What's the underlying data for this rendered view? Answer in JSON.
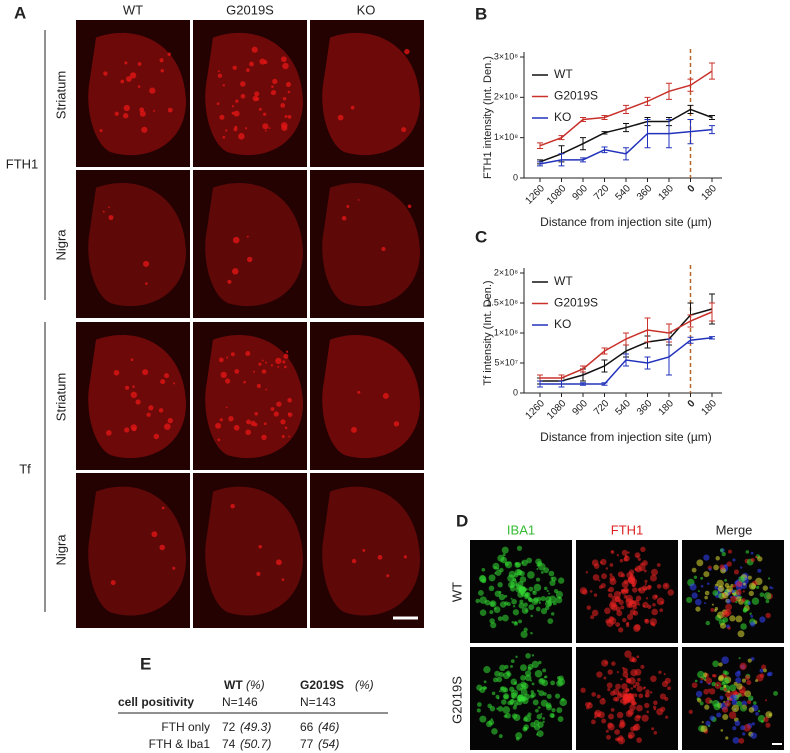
{
  "panel_a": {
    "label": "A",
    "columns": [
      "WT",
      "G2019S",
      "KO"
    ],
    "rows": [
      "Striatum",
      "Nigra",
      "Striatum",
      "Nigra"
    ],
    "groups": [
      "FTH1",
      "Tf"
    ]
  },
  "chart_data": [
    {
      "type": "line",
      "label": "B",
      "ylabel": "FTH1 intensity (Int. Den.)",
      "xlabel": "Distance from injection site (µm)",
      "categories": [
        "1260",
        "1080",
        "900",
        "720",
        "540",
        "360",
        "180",
        "0",
        "180"
      ],
      "highlight": 7,
      "vline_color": "#b8652a",
      "ylim": [
        0,
        300000000
      ],
      "yticks": [
        0,
        {
          "value": 100000000,
          "label": "1×10⁸"
        },
        {
          "value": 200000000,
          "label": "2×10⁸"
        },
        {
          "value": 300000000,
          "label": "3×10⁸"
        }
      ],
      "series": [
        {
          "name": "WT",
          "color": "#111111",
          "values": [
            40000000,
            60000000,
            85000000,
            112000000,
            125000000,
            140000000,
            140000000,
            170000000,
            150000000
          ],
          "errors": [
            5000000,
            20000000,
            15000000,
            3000000,
            10000000,
            10000000,
            10000000,
            10000000,
            5000000
          ]
        },
        {
          "name": "G2019S",
          "color": "#c8302a",
          "values": [
            80000000,
            100000000,
            145000000,
            150000000,
            170000000,
            190000000,
            215000000,
            230000000,
            265000000
          ],
          "errors": [
            7000000,
            5000000,
            5000000,
            5000000,
            10000000,
            10000000,
            20000000,
            15000000,
            20000000
          ]
        },
        {
          "name": "KO",
          "color": "#2233bb",
          "values": [
            35000000,
            45000000,
            45000000,
            70000000,
            60000000,
            110000000,
            110000000,
            115000000,
            120000000
          ],
          "errors": [
            5000000,
            15000000,
            5000000,
            7000000,
            15000000,
            35000000,
            35000000,
            30000000,
            10000000
          ]
        }
      ]
    },
    {
      "type": "line",
      "label": "C",
      "ylabel": "Tf intensity (Int. Den.)",
      "xlabel": "Distance from injection site (µm)",
      "categories": [
        "1260",
        "1080",
        "900",
        "720",
        "540",
        "360",
        "180",
        "0",
        "180"
      ],
      "highlight": 7,
      "vline_color": "#b8652a",
      "ylim": [
        0,
        200000000
      ],
      "yticks": [
        0,
        {
          "value": 50000000,
          "label": "5×10⁷"
        },
        {
          "value": 100000000,
          "label": "1×10⁸"
        },
        {
          "value": 150000000,
          "label": "1.5×10⁸"
        },
        {
          "value": 200000000,
          "label": "2×10⁸"
        }
      ],
      "series": [
        {
          "name": "WT",
          "color": "#111111",
          "values": [
            20000000,
            20000000,
            30000000,
            45000000,
            70000000,
            85000000,
            90000000,
            130000000,
            140000000
          ],
          "errors": [
            5000000,
            5000000,
            10000000,
            10000000,
            10000000,
            10000000,
            10000000,
            20000000,
            25000000
          ]
        },
        {
          "name": "G2019S",
          "color": "#c8302a",
          "values": [
            25000000,
            25000000,
            40000000,
            70000000,
            90000000,
            105000000,
            100000000,
            120000000,
            135000000
          ],
          "errors": [
            5000000,
            5000000,
            5000000,
            5000000,
            10000000,
            20000000,
            15000000,
            10000000,
            15000000
          ]
        },
        {
          "name": "KO",
          "color": "#2233bb",
          "values": [
            15000000,
            15000000,
            15000000,
            15000000,
            55000000,
            50000000,
            60000000,
            88000000,
            92000000
          ],
          "errors": [
            5000000,
            5000000,
            2000000,
            2000000,
            10000000,
            10000000,
            30000000,
            5000000,
            2000000
          ]
        }
      ]
    }
  ],
  "panel_d": {
    "label": "D",
    "columns": [
      "IBA1",
      "FTH1",
      "Merge"
    ],
    "rows": [
      "WT",
      "G2019S"
    ]
  },
  "panel_e": {
    "label": "E",
    "header": [
      {
        "name": "WT",
        "unit": "(%)",
        "n": "N=146"
      },
      {
        "name": "G2019S",
        "unit": "(%)",
        "n": "N=143"
      }
    ],
    "row_header": "cell positivity",
    "rows": [
      {
        "label": "FTH only",
        "cells": [
          [
            "72",
            "(49.3)"
          ],
          [
            "66",
            "(46)"
          ]
        ]
      },
      {
        "label": "FTH & Iba1",
        "cells": [
          [
            "74",
            "(50.7)"
          ],
          [
            "77",
            "(54)"
          ]
        ]
      }
    ]
  }
}
